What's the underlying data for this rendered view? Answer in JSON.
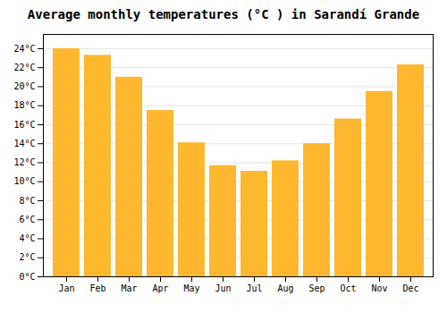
{
  "chart_data": {
    "type": "bar",
    "title": "Average monthly temperatures (°C ) in Sarandí Grande",
    "categories": [
      "Jan",
      "Feb",
      "Mar",
      "Apr",
      "May",
      "Jun",
      "Jul",
      "Aug",
      "Sep",
      "Oct",
      "Nov",
      "Dec"
    ],
    "values": [
      24.0,
      23.3,
      21.0,
      17.5,
      14.1,
      11.7,
      11.1,
      12.2,
      14.0,
      16.6,
      19.5,
      22.3
    ],
    "color": "#FDB830",
    "ylim": [
      0,
      25.5
    ],
    "yticks": [
      {
        "value": 0,
        "label": "0°C"
      },
      {
        "value": 2,
        "label": "2°C"
      },
      {
        "value": 4,
        "label": "4°C"
      },
      {
        "value": 6,
        "label": "6°C"
      },
      {
        "value": 8,
        "label": "8°C"
      },
      {
        "value": 10,
        "label": "10°C"
      },
      {
        "value": 12,
        "label": "12°C"
      },
      {
        "value": 14,
        "label": "14°C"
      },
      {
        "value": 16,
        "label": "16°C"
      },
      {
        "value": 18,
        "label": "18°C"
      },
      {
        "value": 20,
        "label": "20°C"
      },
      {
        "value": 22,
        "label": "22°C"
      },
      {
        "value": 24,
        "label": "24°C"
      }
    ],
    "grid": true
  }
}
